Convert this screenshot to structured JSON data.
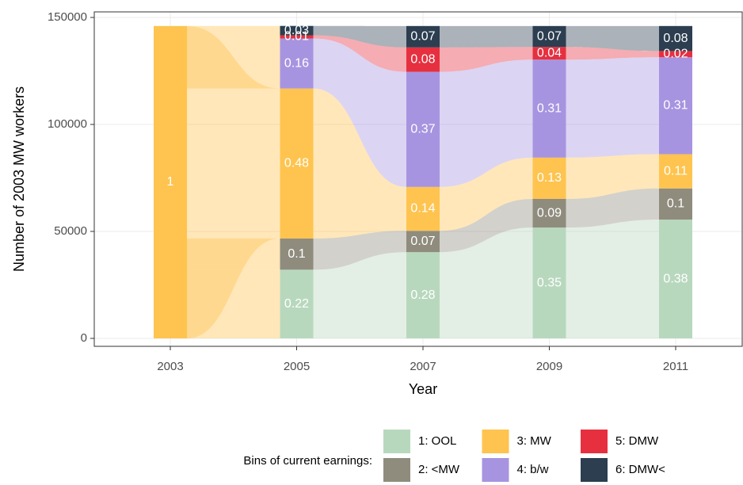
{
  "chart_data": {
    "type": "alluvial",
    "x_label": "Year",
    "y_label": "Number of 2003 MW workers",
    "categories": [
      "2003",
      "2005",
      "2007",
      "2009",
      "2011"
    ],
    "ylim": [
      -3700,
      152600
    ],
    "yticks": [
      0,
      50000,
      100000,
      150000
    ],
    "grid": true,
    "legend_title": "Bins of current earnings:",
    "legend_position": "bottom",
    "series": [
      {
        "name": "1: OOL",
        "color": "#b8d8be",
        "values": [
          null,
          32100,
          40300,
          51800,
          55500
        ],
        "value_labels": [
          null,
          "0.22",
          "0.28",
          "0.35",
          "0.38"
        ]
      },
      {
        "name": "2: <MW",
        "color": "#8f8c7e",
        "values": [
          null,
          14600,
          10000,
          13400,
          14600
        ],
        "value_labels": [
          null,
          "0.1",
          "0.07",
          "0.09",
          "0.1"
        ]
      },
      {
        "name": "3: MW",
        "color": "#fec44f",
        "values": [
          146000,
          70100,
          20500,
          19300,
          16000
        ],
        "value_labels": [
          "1",
          "0.48",
          "0.14",
          "0.13",
          "0.11"
        ]
      },
      {
        "name": "4: b/w",
        "color": "#a794e0",
        "values": [
          null,
          23400,
          53800,
          45800,
          45300
        ],
        "value_labels": [
          null,
          "0.16",
          "0.37",
          "0.31",
          "0.31"
        ]
      },
      {
        "name": "5: DMW",
        "color": "#e6303f",
        "values": [
          null,
          1460,
          11400,
          5900,
          2900
        ],
        "value_labels": [
          null,
          "0.01",
          "0.08",
          "0.04",
          "0.02"
        ]
      },
      {
        "name": "6: DMW<",
        "color": "#2c3e50",
        "values": [
          null,
          4380,
          10000,
          9800,
          11700
        ],
        "value_labels": [
          null,
          "0.03",
          "0.07",
          "0.07",
          "0.08"
        ]
      }
    ]
  }
}
